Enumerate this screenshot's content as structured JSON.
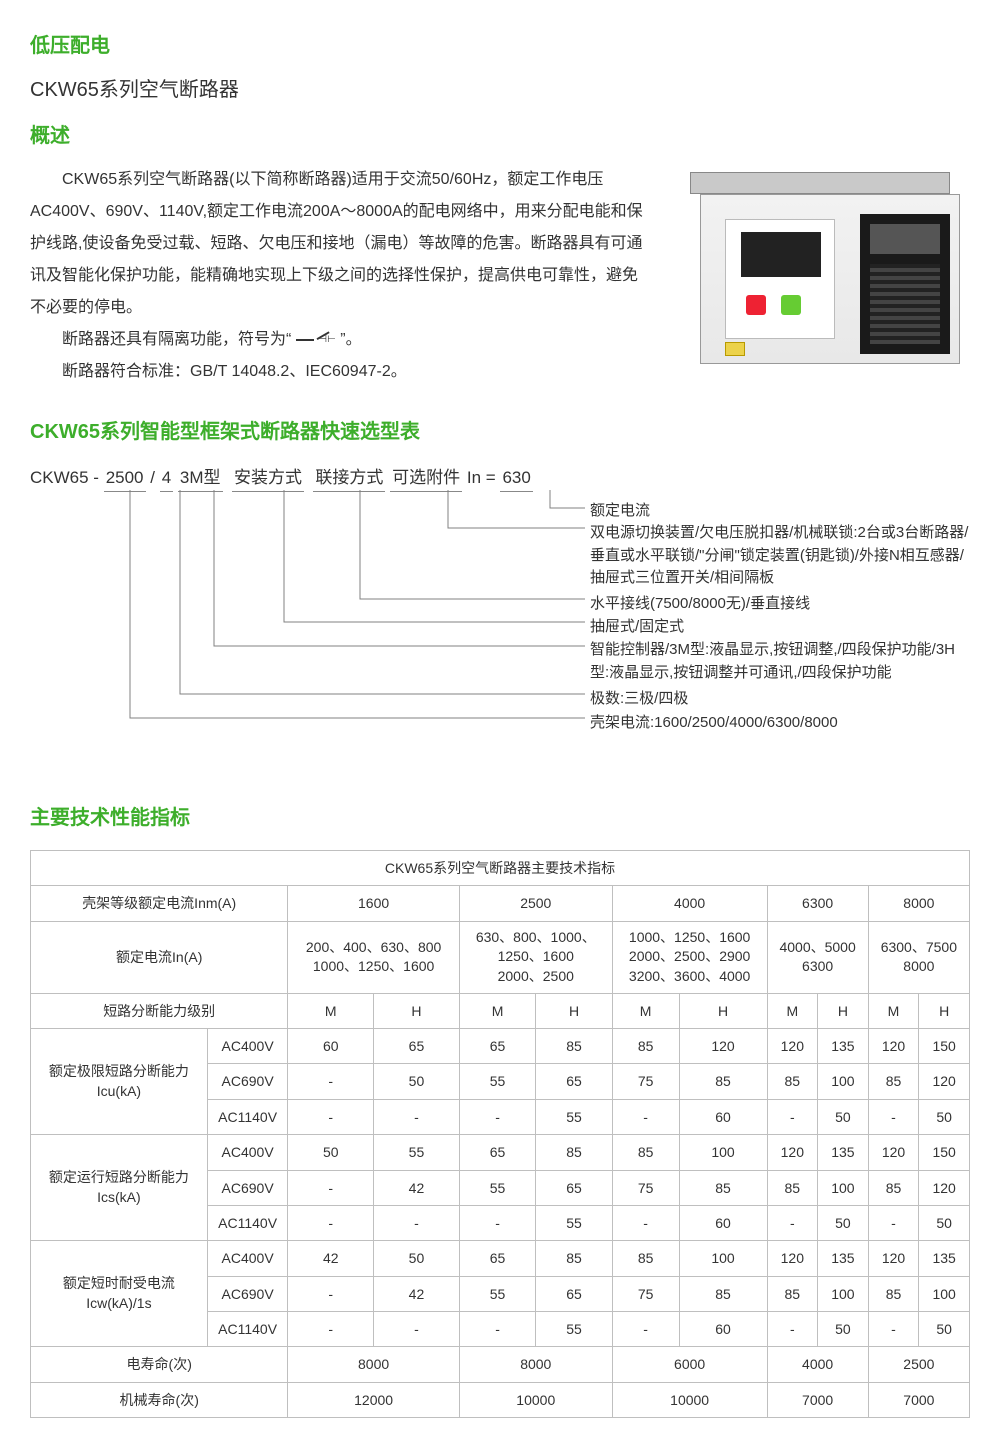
{
  "colors": {
    "accent_green": "#3dae2b",
    "text": "#333333",
    "border": "#bfbfbf",
    "background": "#ffffff"
  },
  "header": {
    "category": "低压配电",
    "product_title": "CKW65系列空气断路器",
    "overview_heading": "概述"
  },
  "overview": {
    "p1": "CKW65系列空气断路器(以下简称断路器)适用于交流50/60Hz，额定工作电压AC400V、690V、1140V,额定工作电流200A～8000A的配电网络中，用来分配电能和保护线路,使设备免受过载、短路、欠电压和接地（漏电）等故障的危害。断路器具有可通讯及智能化保护功能，能精确地实现上下级之间的选择性保护，提高供电可靠性，避免不必要的停电。",
    "p2_prefix": "断路器还具有隔离功能，符号为“",
    "p2_suffix": "”。",
    "p3": "断路器符合标准：GB/T  14048.2、IEC60947-2。"
  },
  "selection": {
    "heading": "CKW65系列智能型框架式断路器快速选型表",
    "formula_prefix": "CKW65 - ",
    "parts": {
      "frame": "2500",
      "sep1": " / ",
      "poles": "4",
      "sep2": " ",
      "ctrl": "3M型",
      "install": "安装方式",
      "connect": "联接方式",
      "accessory": "可选附件",
      "in_prefix": " In = ",
      "in_value": "630"
    },
    "labels": {
      "rated_current": "额定电流",
      "accessory_desc": "双电源切换装置/欠电压脱扣器/机械联锁:2台或3台断路器/垂直或水平联锁/\"分闸\"锁定装置(钥匙锁)/外接N相互感器/抽屉式三位置开关/相间隔板",
      "connect_desc": "水平接线(7500/8000无)/垂直接线",
      "install_desc": "抽屉式/固定式",
      "ctrl_desc": "智能控制器/3M型:液晶显示,按钮调整,/四段保护功能/3H型:液晶显示,按钮调整并可通讯,/四段保护功能",
      "poles_desc": "极数:三极/四极",
      "frame_desc": "壳架电流:1600/2500/4000/6300/8000"
    }
  },
  "specs": {
    "heading": "主要技术性能指标",
    "table_title": "CKW65系列空气断路器主要技术指标",
    "row_labels": {
      "frame_current": "壳架等级额定电流Inm(A)",
      "rated_current": "额定电流In(A)",
      "breaking_level": "短路分断能力级别",
      "icu": "额定极限短路分断能力\nIcu(kA)",
      "ics": "额定运行短路分断能力\nIcs(kA)",
      "icw": "额定短时耐受电流\nIcw(kA)/1s",
      "elec_life": "电寿命(次)",
      "mech_life": "机械寿命(次)"
    },
    "voltages": [
      "AC400V",
      "AC690V",
      "AC1140V"
    ],
    "frames": [
      "1600",
      "2500",
      "4000",
      "6300",
      "8000"
    ],
    "rated_current_cells": [
      "200、400、630、800\n1000、1250、1600",
      "630、800、1000、\n1250、1600\n2000、2500",
      "1000、1250、1600\n2000、2500、2900\n3200、3600、4000",
      "4000、5000\n6300",
      "6300、7500\n8000"
    ],
    "level_labels": [
      "M",
      "H"
    ],
    "icu": {
      "AC400V": [
        "60",
        "65",
        "65",
        "85",
        "85",
        "120",
        "120",
        "135",
        "120",
        "150"
      ],
      "AC690V": [
        "-",
        "50",
        "55",
        "65",
        "75",
        "85",
        "85",
        "100",
        "85",
        "120"
      ],
      "AC1140V": [
        "-",
        "-",
        "-",
        "55",
        "-",
        "60",
        "-",
        "50",
        "-",
        "50"
      ]
    },
    "ics": {
      "AC400V": [
        "50",
        "55",
        "65",
        "85",
        "85",
        "100",
        "120",
        "135",
        "120",
        "150"
      ],
      "AC690V": [
        "-",
        "42",
        "55",
        "65",
        "75",
        "85",
        "85",
        "100",
        "85",
        "120"
      ],
      "AC1140V": [
        "-",
        "-",
        "-",
        "55",
        "-",
        "60",
        "-",
        "50",
        "-",
        "50"
      ]
    },
    "icw": {
      "AC400V": [
        "42",
        "50",
        "65",
        "85",
        "85",
        "100",
        "120",
        "135",
        "120",
        "135"
      ],
      "AC690V": [
        "-",
        "42",
        "55",
        "65",
        "75",
        "85",
        "85",
        "100",
        "85",
        "100"
      ],
      "AC1140V": [
        "-",
        "-",
        "-",
        "55",
        "-",
        "60",
        "-",
        "50",
        "-",
        "50"
      ]
    },
    "elec_life": [
      "8000",
      "8000",
      "6000",
      "4000",
      "2500"
    ],
    "mech_life": [
      "12000",
      "10000",
      "10000",
      "7000",
      "7000"
    ]
  }
}
